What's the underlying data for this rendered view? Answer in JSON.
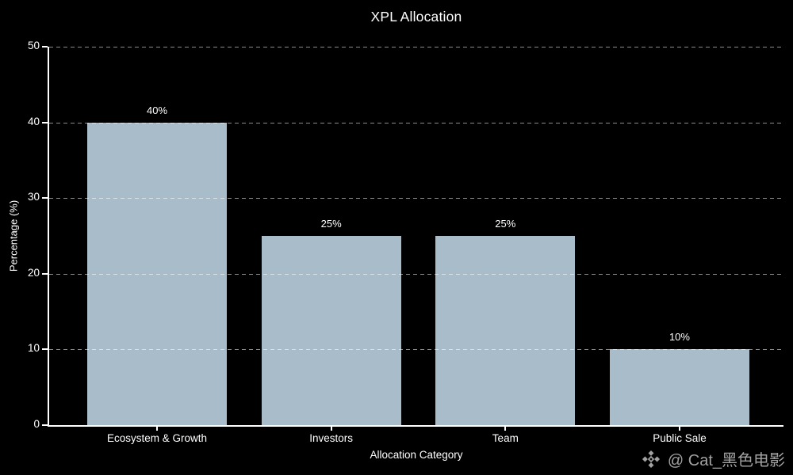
{
  "chart_data": {
    "type": "bar",
    "title": "XPL Allocation",
    "xlabel": "Allocation Category",
    "ylabel": "Percentage (%)",
    "categories": [
      "Ecosystem & Growth",
      "Investors",
      "Team",
      "Public Sale"
    ],
    "values": [
      40,
      25,
      25,
      10
    ],
    "value_labels": [
      "40%",
      "25%",
      "25%",
      "10%"
    ],
    "ylim": [
      0,
      50
    ],
    "yticks": [
      0,
      10,
      20,
      30,
      40,
      50
    ],
    "grid": "horizontal dashed, drawn over bars",
    "legend": "none",
    "bar_color": "#a9bcc9",
    "background_color": "#000000",
    "text_color": "#ffffff",
    "grid_color": "rgba(255,255,255,0.55)"
  },
  "watermark": {
    "icon": "binance-diamond-icon",
    "text": "@ Cat_黑色电影",
    "color": "#a2a2a2"
  }
}
